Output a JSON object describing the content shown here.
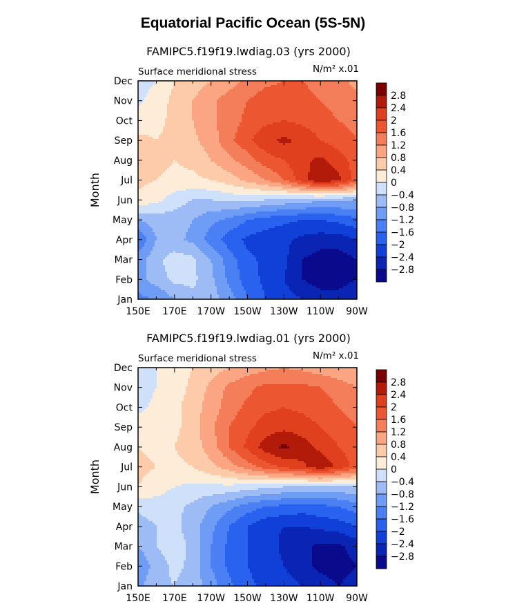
{
  "page": {
    "title": "Equatorial Pacific Ocean (5S-5N)"
  },
  "chart_data": [
    {
      "type": "heatmap",
      "case_label": "FAMIPC5.f19f19.lwdiag.03 (yrs 2000)",
      "field_label": "Surface meridional stress",
      "units_label": "N/m² x.01",
      "ylabel": "Month",
      "x_ticks": [
        "150E",
        "170E",
        "170W",
        "150W",
        "130W",
        "110W",
        "90W"
      ],
      "y_ticks": [
        "Jan",
        "Feb",
        "Mar",
        "Apr",
        "May",
        "Jun",
        "Jul",
        "Aug",
        "Sep",
        "Oct",
        "Nov",
        "Dec"
      ],
      "xlim_deg_east": [
        150,
        270
      ],
      "x_grid_deg_east": [
        150,
        160,
        170,
        180,
        190,
        200,
        210,
        220,
        230,
        240,
        250,
        260,
        270
      ],
      "colorbar_levels": [
        "2.8",
        "2.4",
        "2",
        "1.6",
        "1.2",
        "0.8",
        "0.4",
        "0",
        "−0.4",
        "−0.8",
        "−1.2",
        "−1.6",
        "−2",
        "−2.4",
        "−2.8"
      ],
      "values": [
        [
          -1.3,
          -1.2,
          -0.8,
          -0.5,
          -0.6,
          -1.0,
          -1.6,
          -2.0,
          -2.2,
          -2.4,
          -2.6,
          -2.6,
          -2.4
        ],
        [
          -1.0,
          -0.6,
          -0.3,
          -0.3,
          -0.7,
          -1.3,
          -1.8,
          -2.1,
          -2.4,
          -2.8,
          -3.0,
          -3.0,
          -2.8
        ],
        [
          -1.0,
          -0.5,
          -0.2,
          -0.3,
          -0.8,
          -1.4,
          -1.9,
          -2.1,
          -2.3,
          -2.8,
          -3.0,
          -3.0,
          -2.8
        ],
        [
          -1.6,
          -0.8,
          -0.7,
          -0.9,
          -1.4,
          -1.8,
          -2.1,
          -2.2,
          -2.3,
          -2.5,
          -2.6,
          -2.6,
          -2.4
        ],
        [
          -0.8,
          -0.6,
          -0.6,
          -0.8,
          -1.1,
          -1.3,
          -1.6,
          -1.8,
          -1.9,
          -2.0,
          -2.0,
          -1.9,
          -1.7
        ],
        [
          0.3,
          0.1,
          -0.2,
          -0.4,
          -0.4,
          -0.3,
          -0.3,
          -0.4,
          -0.5,
          -0.6,
          -0.7,
          -0.7,
          -0.7
        ],
        [
          0.5,
          0.4,
          0.3,
          0.3,
          0.4,
          0.6,
          0.9,
          1.2,
          1.6,
          2.2,
          2.8,
          2.5,
          1.8
        ],
        [
          0.6,
          0.5,
          0.4,
          0.5,
          0.8,
          1.1,
          1.4,
          1.8,
          2.0,
          2.3,
          2.5,
          2.2,
          1.8
        ],
        [
          0.5,
          0.4,
          0.5,
          0.7,
          1.0,
          1.5,
          1.9,
          2.3,
          2.5,
          2.3,
          2.0,
          1.8,
          1.6
        ],
        [
          0.2,
          0.3,
          0.5,
          0.8,
          1.1,
          1.4,
          1.7,
          1.9,
          2.0,
          1.9,
          1.8,
          1.6,
          1.5
        ],
        [
          -0.1,
          0.2,
          0.5,
          0.8,
          1.1,
          1.4,
          1.6,
          1.8,
          1.8,
          1.7,
          1.6,
          1.4,
          1.3
        ],
        [
          -0.2,
          0.0,
          0.4,
          0.6,
          0.8,
          1.0,
          1.3,
          1.5,
          1.6,
          1.6,
          1.5,
          1.3,
          1.1
        ]
      ]
    },
    {
      "type": "heatmap",
      "case_label": "FAMIPC5.f19f19.lwdiag.01 (yrs 2000)",
      "field_label": "Surface meridional stress",
      "units_label": "N/m² x.01",
      "ylabel": "Month",
      "x_ticks": [
        "150E",
        "170E",
        "170W",
        "150W",
        "130W",
        "110W",
        "90W"
      ],
      "y_ticks": [
        "Jan",
        "Feb",
        "Mar",
        "Apr",
        "May",
        "Jun",
        "Jul",
        "Aug",
        "Sep",
        "Oct",
        "Nov",
        "Dec"
      ],
      "xlim_deg_east": [
        150,
        270
      ],
      "x_grid_deg_east": [
        150,
        160,
        170,
        180,
        190,
        200,
        210,
        220,
        230,
        240,
        250,
        260,
        270
      ],
      "colorbar_levels": [
        "2.8",
        "2.4",
        "2",
        "1.6",
        "1.2",
        "0.8",
        "0.4",
        "0",
        "−0.4",
        "−0.8",
        "−1.2",
        "−1.6",
        "−2",
        "−2.4",
        "−2.8"
      ],
      "values": [
        [
          -0.9,
          -0.5,
          -0.4,
          -0.6,
          -1.0,
          -1.5,
          -1.9,
          -2.1,
          -2.2,
          -2.4,
          -2.6,
          -2.8,
          -2.6
        ],
        [
          -1.2,
          -0.6,
          -0.3,
          -0.5,
          -1.2,
          -1.7,
          -2.0,
          -2.2,
          -2.4,
          -2.7,
          -2.9,
          -3.0,
          -2.8
        ],
        [
          -0.8,
          -0.4,
          -0.2,
          -0.5,
          -1.2,
          -1.7,
          -2.0,
          -2.2,
          -2.5,
          -2.7,
          -2.9,
          -2.9,
          -2.6
        ],
        [
          -0.6,
          -0.4,
          -0.3,
          -0.6,
          -1.1,
          -1.6,
          -2.0,
          -2.3,
          -2.4,
          -2.4,
          -2.3,
          -2.2,
          -2.0
        ],
        [
          -0.3,
          -0.2,
          -0.3,
          -0.5,
          -0.8,
          -1.1,
          -1.4,
          -1.6,
          -1.7,
          -1.8,
          -1.7,
          -1.6,
          -1.4
        ],
        [
          0.4,
          0.2,
          0.0,
          -0.1,
          -0.1,
          -0.1,
          -0.2,
          -0.3,
          -0.4,
          -0.5,
          -0.5,
          -0.5,
          -0.4
        ],
        [
          0.5,
          0.4,
          0.3,
          0.4,
          0.7,
          1.0,
          1.4,
          1.8,
          2.1,
          2.3,
          2.7,
          2.3,
          1.8
        ],
        [
          0.4,
          0.3,
          0.4,
          0.6,
          1.0,
          1.6,
          2.1,
          2.6,
          2.9,
          2.6,
          2.3,
          2.0,
          1.8
        ],
        [
          0.2,
          0.2,
          0.3,
          0.6,
          1.1,
          1.6,
          1.9,
          2.2,
          2.3,
          2.2,
          2.0,
          1.8,
          1.6
        ],
        [
          -0.1,
          0.1,
          0.3,
          0.6,
          1.0,
          1.4,
          1.7,
          1.9,
          2.0,
          1.9,
          1.8,
          1.6,
          1.4
        ],
        [
          -0.2,
          0.0,
          0.2,
          0.5,
          0.9,
          1.3,
          1.5,
          1.7,
          1.7,
          1.7,
          1.6,
          1.4,
          1.2
        ],
        [
          -0.3,
          0.0,
          0.2,
          0.4,
          0.6,
          0.8,
          1.0,
          1.1,
          1.2,
          1.1,
          1.0,
          0.9,
          0.8
        ]
      ]
    }
  ],
  "palette": {
    "levels": [
      -2.8,
      -2.4,
      -2.0,
      -1.6,
      -1.2,
      -0.8,
      -0.4,
      0,
      0.4,
      0.8,
      1.2,
      1.6,
      2.0,
      2.4,
      2.8
    ],
    "colors": [
      "#0a0a8c",
      "#0a24b4",
      "#1040d8",
      "#2a62f0",
      "#4a80f4",
      "#6f9cf4",
      "#9dbcf6",
      "#cfe0fa",
      "#fdecd8",
      "#fdcbaa",
      "#fba582",
      "#f57e5a",
      "#ec5630",
      "#e0401e",
      "#b21a0a",
      "#7a0000"
    ]
  }
}
